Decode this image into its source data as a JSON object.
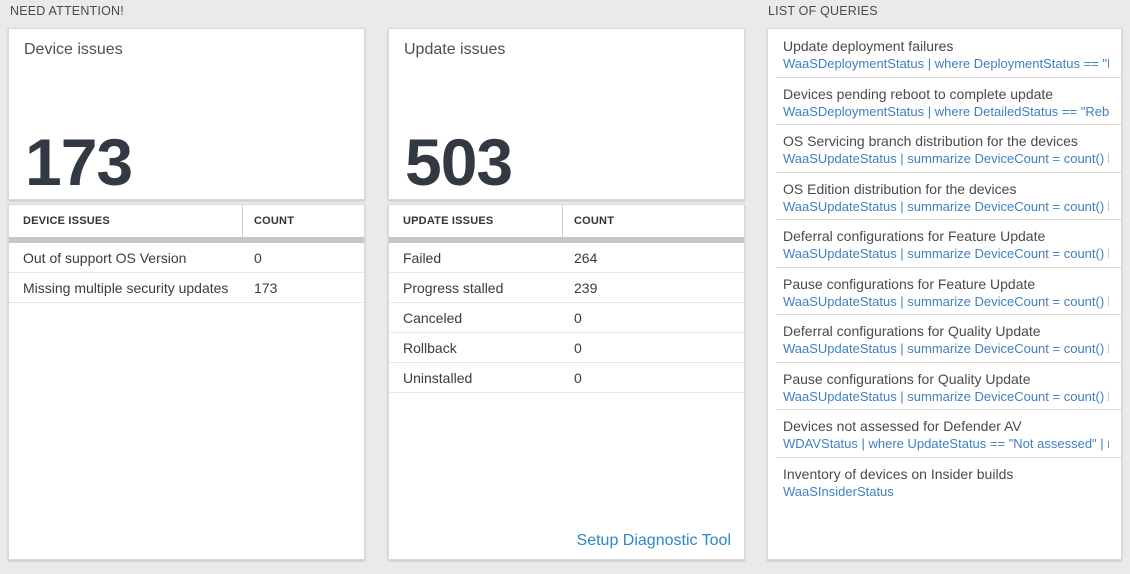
{
  "colors": {
    "accent_blue": "#4080c0",
    "link_blue": "#2e86c6"
  },
  "need_attention": {
    "section_label": "NEED ATTENTION!",
    "device_card": {
      "title": "Device issues",
      "big_count": "173"
    },
    "device_table": {
      "col_issue": "DEVICE ISSUES",
      "col_count": "COUNT",
      "rows": [
        {
          "issue": "Out of support OS Version",
          "count": "0"
        },
        {
          "issue": "Missing multiple security updates",
          "count": "173"
        }
      ]
    },
    "update_card": {
      "title": "Update issues",
      "big_count": "503"
    },
    "update_table": {
      "col_issue": "UPDATE ISSUES",
      "col_count": "COUNT",
      "rows": [
        {
          "issue": "Failed",
          "count": "264"
        },
        {
          "issue": "Progress stalled",
          "count": "239"
        },
        {
          "issue": "Canceled",
          "count": "0"
        },
        {
          "issue": "Rollback",
          "count": "0"
        },
        {
          "issue": "Uninstalled",
          "count": "0"
        }
      ],
      "footer_link": "Setup Diagnostic Tool"
    }
  },
  "queries_panel": {
    "section_label": "LIST OF QUERIES",
    "items": [
      {
        "title": "Update deployment failures",
        "query": "WaaSDeploymentStatus | where DeploymentStatus == \"Failed\" |..."
      },
      {
        "title": "Devices pending reboot to complete update",
        "query": "WaaSDeploymentStatus | where DetailedStatus == \"Reboot pend..."
      },
      {
        "title": "OS Servicing branch distribution for the devices",
        "query": "WaaSUpdateStatus | summarize DeviceCount = count() by OSSer..."
      },
      {
        "title": "OS Edition distribution for the devices",
        "query": "WaaSUpdateStatus | summarize DeviceCount = count() by OSEdit..."
      },
      {
        "title": "Deferral configurations for Feature Update",
        "query": "WaaSUpdateStatus | summarize DeviceCount = count() by Featur..."
      },
      {
        "title": "Pause configurations for Feature Update",
        "query": "WaaSUpdateStatus | summarize DeviceCount = count() by Featur..."
      },
      {
        "title": "Deferral configurations for Quality Update",
        "query": "WaaSUpdateStatus | summarize DeviceCount = count() by Qualit..."
      },
      {
        "title": "Pause configurations for Quality Update",
        "query": "WaaSUpdateStatus | summarize DeviceCount = count() by Qualit..."
      },
      {
        "title": "Devices not assessed for Defender AV",
        "query": "WDAVStatus | where UpdateStatus == \"Not assessed\" | render ta..."
      },
      {
        "title": "Inventory of devices on Insider builds",
        "query": "WaaSInsiderStatus"
      }
    ]
  }
}
